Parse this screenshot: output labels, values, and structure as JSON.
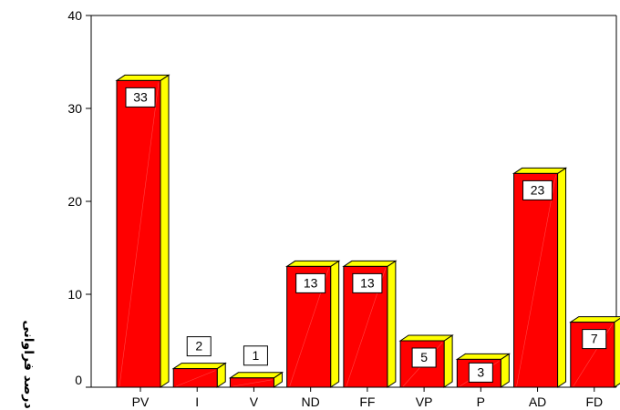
{
  "chart_data": {
    "type": "bar",
    "categories": [
      "PV",
      "I",
      "V",
      "ND",
      "FF",
      "VP",
      "P",
      "AD",
      "FD"
    ],
    "values": [
      33,
      2,
      1,
      13,
      13,
      5,
      3,
      23,
      7
    ],
    "data_labels": [
      "33",
      "2",
      "1",
      "13",
      "13",
      "5",
      "3",
      "23",
      "7"
    ],
    "ylabel": "درصد فراوانی",
    "ylim": [
      0,
      40
    ],
    "yticks": [
      "0",
      "10",
      "20",
      "30",
      "40"
    ],
    "grid": false,
    "style": "3d",
    "colors": {
      "bar_front": "#ff0000",
      "bar_side": "#ffff00",
      "bar_top": "#ffff00",
      "outline": "#000000",
      "label_box": "#ffffff"
    }
  }
}
